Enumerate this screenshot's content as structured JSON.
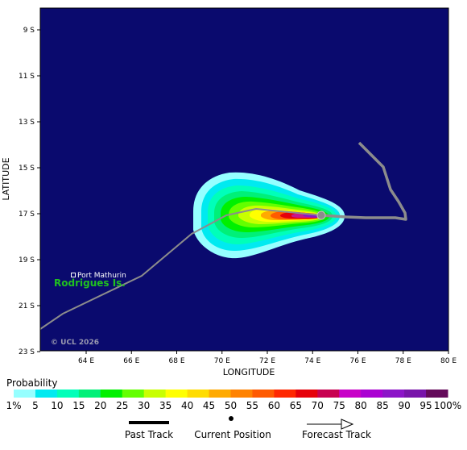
{
  "map": {
    "lat_ticks": [
      "9 S",
      "11 S",
      "13 S",
      "15 S",
      "17 S",
      "19 S",
      "21 S",
      "23 S"
    ],
    "lon_ticks": [
      "64 E",
      "66 E",
      "68 E",
      "70 E",
      "72 E",
      "74 E",
      "76 E",
      "78 E",
      "80 E"
    ],
    "xlabel": "LONGITUDE",
    "ylabel": "LATITUDE",
    "port_label": "Port Mathurin",
    "island_label": "Rodrigues Is.",
    "copyright": "© UCL 2026",
    "ocean_color": "#0a0a6e",
    "track_color": "#8c8c8c"
  },
  "legend": {
    "title": "Probability",
    "levels": [
      "1%",
      "5",
      "10",
      "15",
      "20",
      "25",
      "30",
      "35",
      "40",
      "45",
      "50",
      "55",
      "60",
      "65",
      "70",
      "75",
      "80",
      "85",
      "90",
      "95",
      "100%"
    ],
    "colors": [
      "#96ffff",
      "#00eaf0",
      "#00ffb9",
      "#00f078",
      "#00f000",
      "#64ff00",
      "#c8ff00",
      "#ffff00",
      "#ffdc00",
      "#ffaa00",
      "#ff8200",
      "#ff5a00",
      "#ff2800",
      "#e6000a",
      "#c80050",
      "#c800c8",
      "#aa00d2",
      "#8c14c8",
      "#7814aa",
      "#640a5a"
    ],
    "past_track": "Past Track",
    "current_position": "Current Position",
    "forecast_track": "Forecast Track"
  }
}
